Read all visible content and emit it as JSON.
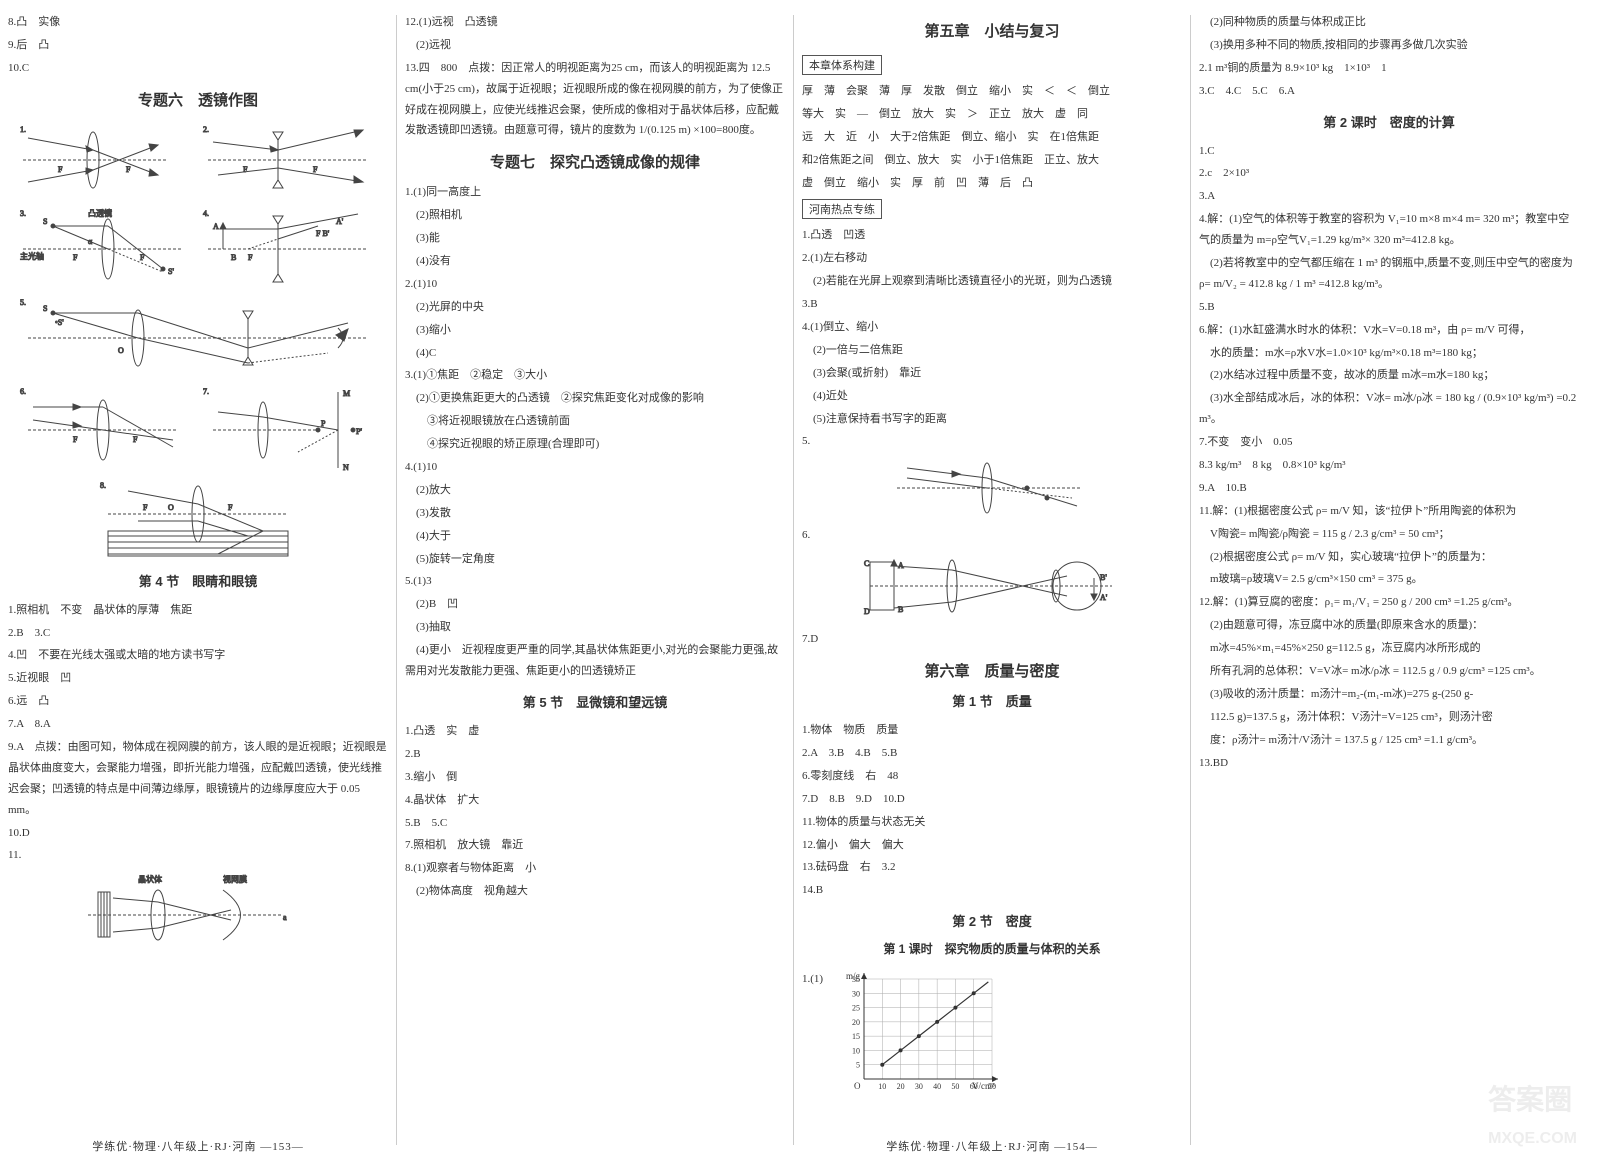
{
  "col1": {
    "top_answers": [
      "8.凸　实像",
      "9.后　凸",
      "10.C"
    ],
    "heading": "专题六　透镜作图",
    "fig_labels": {
      "f": "F",
      "f2": "F",
      "a": "A",
      "b": "B",
      "s": "S",
      "sp": "S'",
      "o": "O",
      "p": "P",
      "m": "M",
      "n": "N",
      "主光轴": "主光轴",
      "凸透镜": "凸透镜"
    },
    "section4": "第 4 节　眼睛和眼镜",
    "s4_lines": [
      "1.照相机　不变　晶状体的厚薄　焦距",
      "2.B　3.C",
      "4.凹　不要在光线太强或太暗的地方读书写字",
      "5.近视眼　凹",
      "6.远　凸",
      "7.A　8.A",
      "9.A　点拨：由图可知，物体成在视网膜的前方，该人眼的是近视眼；近视眼是晶状体曲度变大，会聚能力增强，即折光能力增强，应配戴凹透镜，使光线推迟会聚；凹透镜的特点是中间薄边缘厚，眼镜镜片的边缘厚度应大于 0.05 mm。",
      "10.D",
      "11."
    ],
    "fig11_labels": {
      "a": "晶状体",
      "b": "视网膜"
    },
    "footer": "学练优·物理·八年级上·RJ·河南 —153—"
  },
  "col2": {
    "top_lines": [
      "12.(1)远视　凸透镜",
      "　(2)远视",
      "13.四　800　点拨：因正常人的明视距离为25 cm，而该人的明视距离为 12.5 cm(小于25 cm)，故属于近视眼；近视眼所成的像在视网膜的前方，为了使像正好成在视网膜上，应使光线推迟会聚，使所成的像相对于晶状体后移，应配戴发散透镜即凹透镜。由题意可得，镜片的度数为 1/(0.125 m) ×100=800度。"
    ],
    "heading7": "专题七　探究凸透镜成像的规律",
    "s7_lines": [
      "1.(1)同一高度上",
      "　(2)照相机",
      "　(3)能",
      "　(4)没有",
      "2.(1)10",
      "　(2)光屏的中央",
      "　(3)缩小",
      "　(4)C",
      "3.(1)①焦距　②稳定　③大小",
      "　(2)①更换焦距更大的凸透镜　②探究焦距变化对成像的影响",
      "　　③将近视眼镜放在凸透镜前面",
      "　　④探究近视眼的矫正原理(合理即可)",
      "4.(1)10",
      "　(2)放大",
      "　(3)发散",
      "　(4)大于",
      "　(5)旋转一定角度",
      "5.(1)3",
      "　(2)B　凹",
      "　(3)抽取",
      "　(4)更小　近视程度更严重的同学,其晶状体焦距更小,对光的会聚能力更强,故需用对光发散能力更强、焦距更小的凹透镜矫正"
    ],
    "section5": "第 5 节　显微镜和望远镜",
    "s5_lines": [
      "1.凸透　实　虚",
      "2.B",
      "3.缩小　倒",
      "4.晶状体　扩大",
      "5.B　5.C",
      "7.照相机　放大镜　靠近",
      "8.(1)观察者与物体距离　小",
      "　(2)物体高度　视角越大"
    ]
  },
  "col3": {
    "heading_ch5": "第五章　小结与复习",
    "box1": "本章体系构建",
    "structure_lines": [
      "厚　薄　会聚　薄　厚　发散　倒立　缩小　实　＜　＜　倒立",
      "等大　实　—　倒立　放大　实　＞　正立　放大　虚　同",
      "远　大　近　小　大于2倍焦距　倒立、缩小　实　在1倍焦距",
      "和2倍焦距之间　倒立、放大　实　小于1倍焦距　正立、放大",
      "虚　倒立　缩小　实　厚　前　凹　薄　后　凸"
    ],
    "box2": "河南热点专练",
    "hot_lines": [
      "1.凸透　凹透",
      "2.(1)左右移动",
      "　(2)若能在光屏上观察到清晰比透镜直径小的光斑，则为凸透镜",
      "3.B",
      "4.(1)倒立、缩小",
      "　(2)一倍与二倍焦距",
      "　(3)会聚(或折射)　靠近",
      "　(4)近处",
      "　(5)注意保持看书写字的距离",
      "5.",
      "",
      "",
      "6.",
      "",
      "",
      "7.D"
    ],
    "fig6_labels": {
      "c": "C",
      "d": "D",
      "a": "A",
      "b": "B",
      "ap": "A'",
      "bp": "B'"
    },
    "heading_ch6": "第六章　质量与密度",
    "section1": "第 1 节　质量",
    "s1_lines": [
      "1.物体　物质　质量",
      "2.A　3.B　4.B　5.B",
      "6.零刻度线　右　48",
      "7.D　8.B　9.D　10.D",
      "11.物体的质量与状态无关",
      "12.偏小　偏大　偏大",
      "13.砝码盘　右　3.2",
      "14.B"
    ],
    "section2": "第 2 节　密度",
    "lesson1": "第 1 课时　探究物质的质量与体积的关系",
    "chart": {
      "type": "line",
      "ylabel": "m/g",
      "xlabel": "V/cm³",
      "xmax": 70,
      "ymax": 35,
      "xticks": [
        10,
        20,
        30,
        40,
        50,
        60,
        70
      ],
      "yticks": [
        5,
        10,
        15,
        20,
        25,
        30,
        35
      ],
      "points": [
        [
          10,
          5
        ],
        [
          20,
          10
        ],
        [
          30,
          15
        ],
        [
          40,
          20
        ],
        [
          50,
          25
        ],
        [
          60,
          30
        ]
      ],
      "line_color": "#333333",
      "grid_color": "#aaaaaa",
      "bg": "#ffffff"
    },
    "q1_prefix": "1.(1)",
    "footer": "学练优·物理·八年级上·RJ·河南 —154—"
  },
  "col4": {
    "top_lines": [
      "　(2)同种物质的质量与体积成正比",
      "　(3)换用多种不同的物质,按相同的步骤再多做几次实验",
      "2.1 m³铜的质量为 8.9×10³ kg　1×10³　1",
      "3.C　4.C　5.C　6.A"
    ],
    "lesson2": "第 2 课时　密度的计算",
    "l2_lines": [
      "1.C",
      "2.c　2×10³",
      "3.A",
      "4.解：(1)空气的体积等于教室的容积为 V₁=10 m×8 m×4 m= 320 m³；教室中空气的质量为 m=ρ空气V₁=1.29 kg/m³× 320 m³=412.8 kg。",
      "　(2)若将教室中的空气都压缩在 1 m³ 的钢瓶中,质量不变,则压中空气的密度为 ρ= m/V₂ = 412.8 kg / 1 m³ =412.8 kg/m³。",
      "5.B",
      "6.解：(1)水缸盛满水时水的体积：V水=V=0.18 m³，由 ρ= m/V 可得，",
      "　水的质量：m水=ρ水V水=1.0×10³ kg/m³×0.18 m³=180 kg；",
      "　(2)水结冰过程中质量不变，故冰的质量 m冰=m水=180 kg；",
      "　(3)水全部结成冰后，冰的体积：V冰= m冰/ρ冰 = 180 kg / (0.9×10³ kg/m³) =0.2 m³。",
      "7.不变　变小　0.05",
      "8.3 kg/m³　8 kg　0.8×10³ kg/m³",
      "9.A　10.B",
      "11.解：(1)根据密度公式 ρ= m/V 知，该“拉伊卜”所用陶瓷的体积为",
      "　V陶瓷= m陶瓷/ρ陶瓷 = 115 g / 2.3 g/cm³ = 50 cm³；",
      "　(2)根据密度公式 ρ= m/V 知，实心玻璃“拉伊卜”的质量为：",
      "　m玻璃=ρ玻璃V= 2.5 g/cm³×150 cm³ = 375 g。",
      "12.解：(1)算豆腐的密度：ρ₁= m₁/V₁ = 250 g / 200 cm³ =1.25 g/cm³。",
      "　(2)由题意可得，冻豆腐中冰的质量(即原来含水的质量)：",
      "　m冰=45%×m₁=45%×250 g=112.5 g，冻豆腐内冰所形成的",
      "　所有孔洞的总体积：V=V冰= m冰/ρ冰 = 112.5 g / 0.9 g/cm³ =125 cm³。",
      "　(3)吸收的汤汁质量：m汤汁=m₂-(m₁-m冰)=275 g-(250 g-",
      "　112.5 g)=137.5 g，汤汁体积：V汤汁=V=125 cm³，则汤汁密",
      "　度：ρ汤汁= m汤汁/V汤汁 = 137.5 g / 125 cm³ =1.1 g/cm³。",
      "13.BD"
    ],
    "watermark1": "答案圈",
    "watermark2": "MXQE.COM"
  },
  "colors": {
    "text": "#333333",
    "light_text": "#666666",
    "divider": "#bbbbbb",
    "figure_stroke": "#444444",
    "grid": "#aaaaaa"
  }
}
